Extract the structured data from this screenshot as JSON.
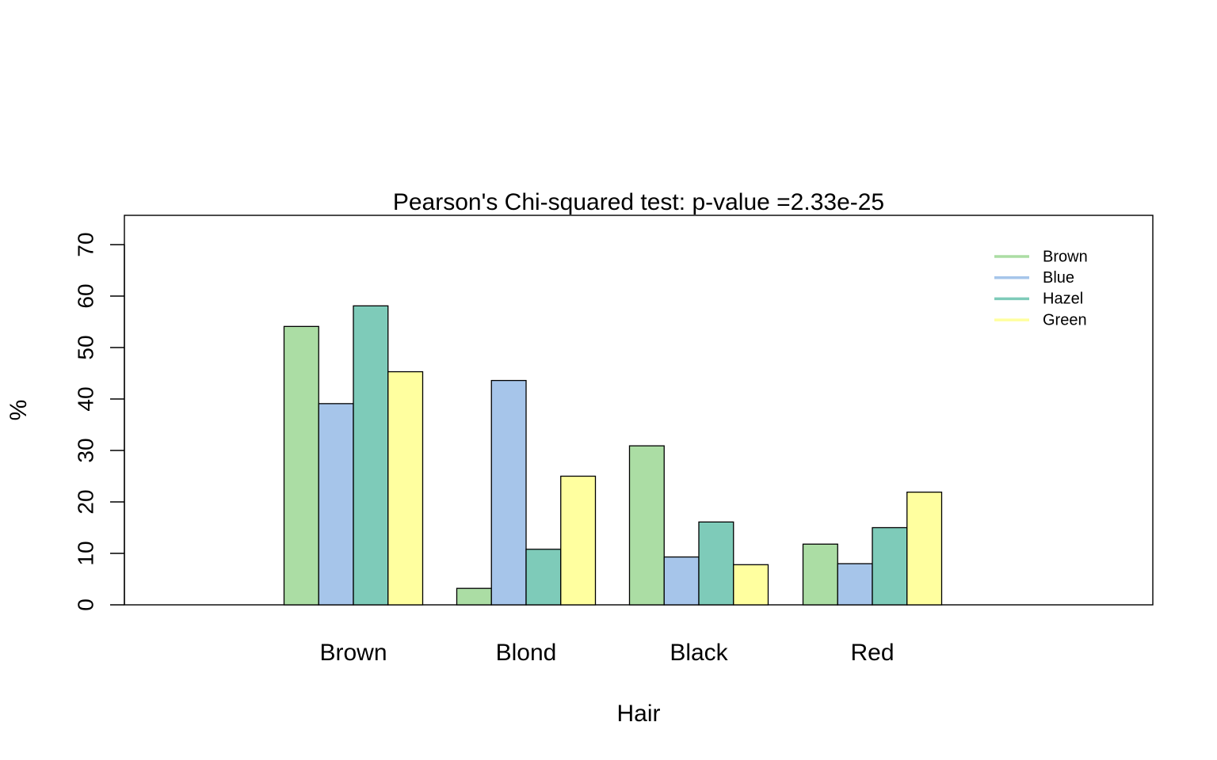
{
  "chart_data": {
    "type": "bar",
    "title": "Pearson's Chi-squared test: p-value =2.33e-25",
    "xlabel": "Hair",
    "ylabel": "%",
    "categories": [
      "Brown",
      "Blond",
      "Black",
      "Red"
    ],
    "series": [
      {
        "name": "Brown",
        "color": "#abdda4",
        "values": [
          54.1,
          3.2,
          30.9,
          11.8
        ]
      },
      {
        "name": "Blue",
        "color": "#a6c5ea",
        "values": [
          39.1,
          43.6,
          9.3,
          8.0
        ]
      },
      {
        "name": "Hazel",
        "color": "#7ecbb9",
        "values": [
          58.1,
          10.8,
          16.1,
          15.0
        ]
      },
      {
        "name": "Green",
        "color": "#ffff9f",
        "values": [
          45.3,
          25.0,
          7.8,
          21.9
        ]
      }
    ],
    "ylim": [
      0,
      70
    ],
    "yticks": [
      0,
      10,
      20,
      30,
      40,
      50,
      60,
      70
    ],
    "grid": false,
    "legend_position": "top-right"
  }
}
